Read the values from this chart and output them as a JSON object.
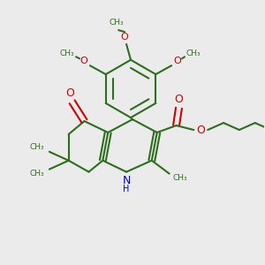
{
  "bg_color": "#ebebeb",
  "bond_color": "#2d6e1e",
  "o_color": "#cc0000",
  "n_color": "#0000cc",
  "line_width": 1.5,
  "figsize": [
    3.0,
    3.0
  ],
  "dpi": 100,
  "xlim": [
    0,
    300
  ],
  "ylim": [
    0,
    300
  ]
}
